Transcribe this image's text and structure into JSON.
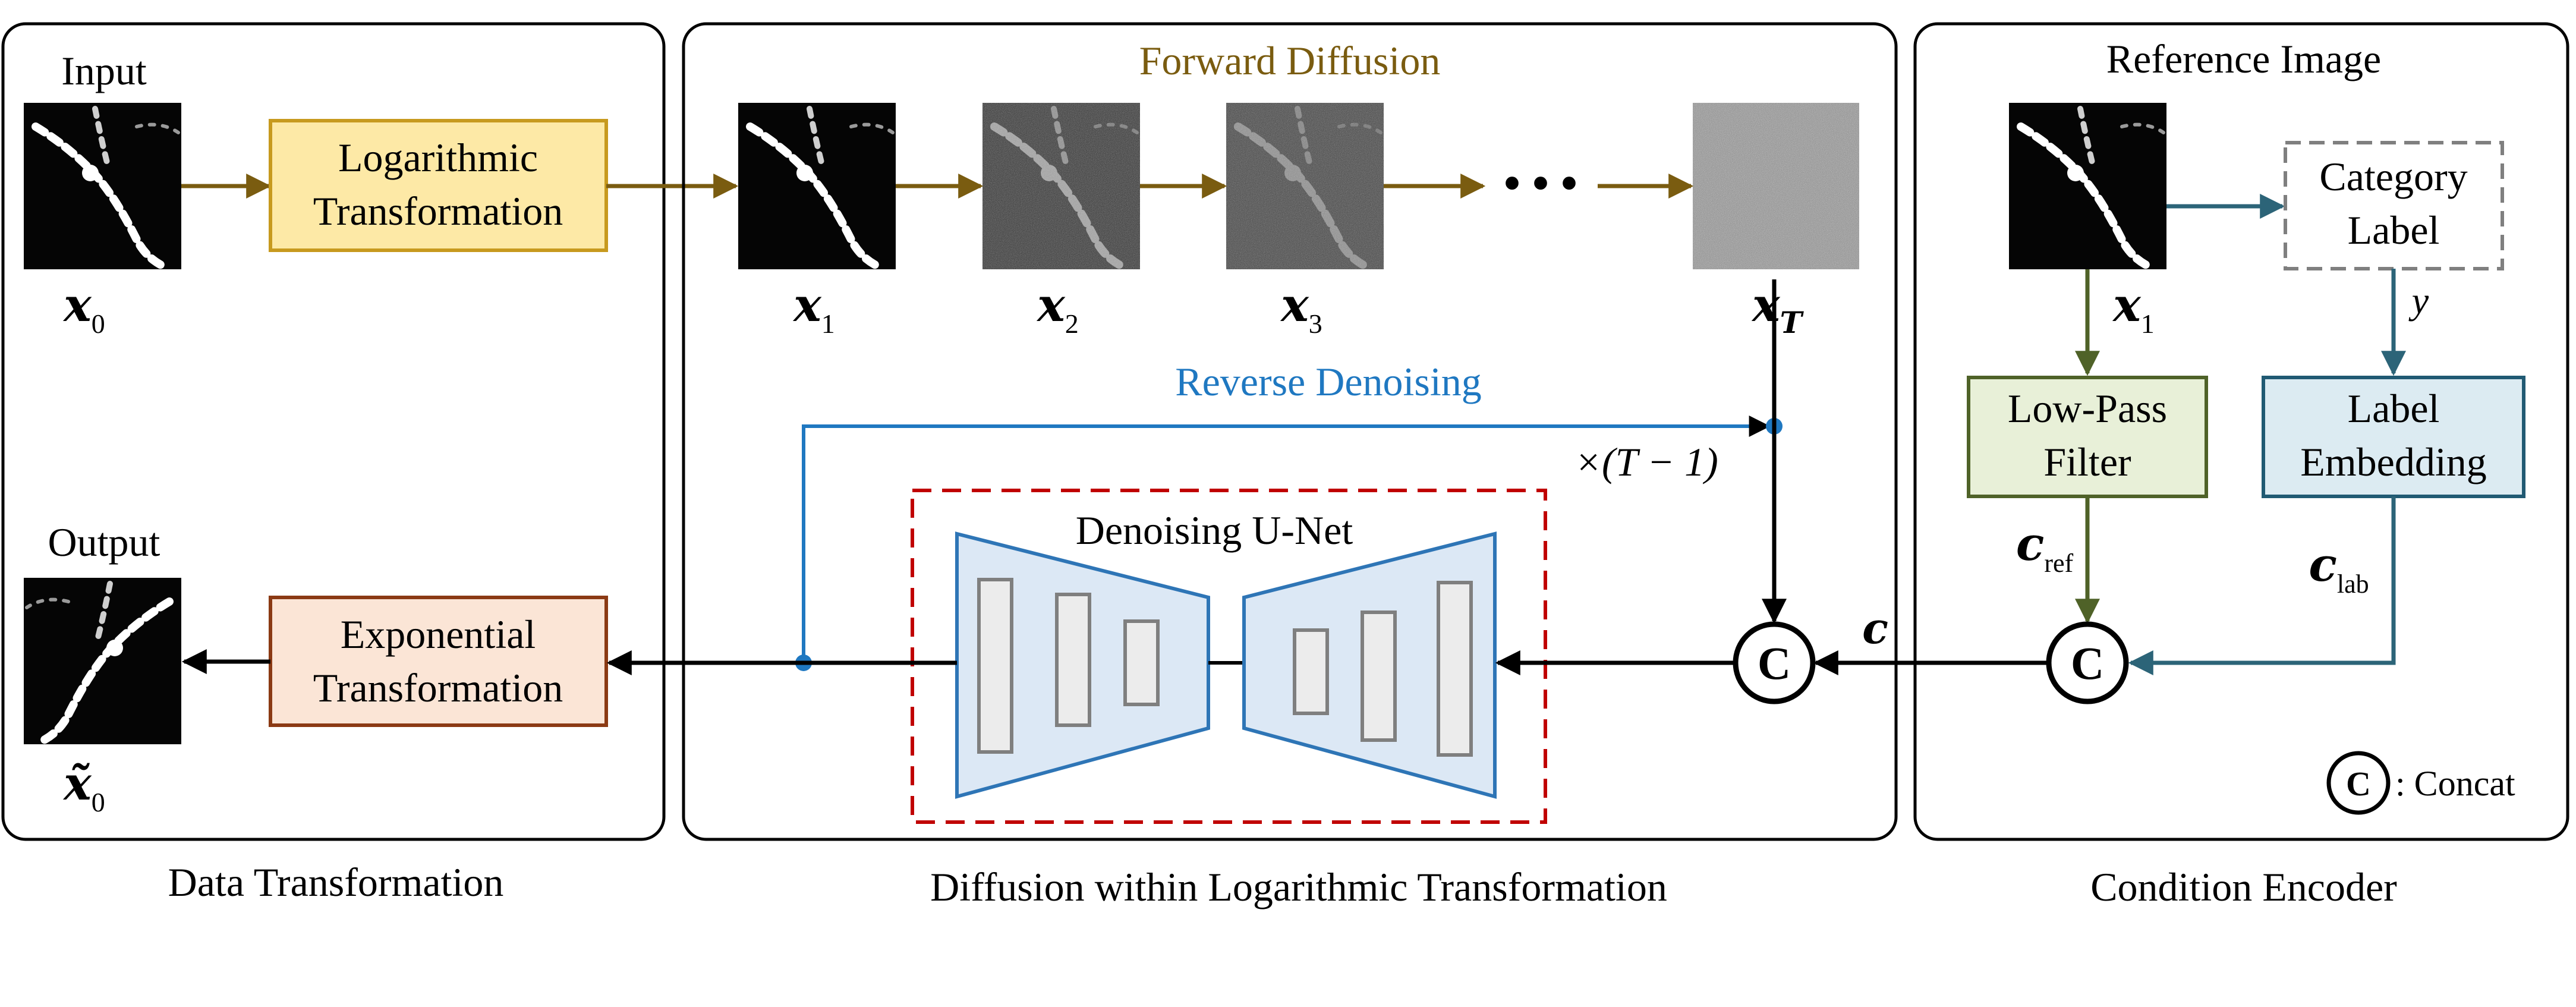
{
  "panels": {
    "data_transformation": {
      "caption": "Data Transformation",
      "input_label": "Input",
      "output_label": "Output",
      "input_var": "x",
      "input_sub": "0",
      "output_var": "x̃",
      "output_sub": "0",
      "log_box": [
        "Logarithmic",
        "Transformation"
      ],
      "exp_box": [
        "Exponential",
        "Transformation"
      ]
    },
    "diffusion": {
      "caption": "Diffusion within Logarithmic Transformation",
      "forward_title": "Forward Diffusion",
      "reverse_title": "Reverse Denoising",
      "states": [
        {
          "var": "x",
          "sub": "1"
        },
        {
          "var": "x",
          "sub": "2"
        },
        {
          "var": "x",
          "sub": "3"
        },
        {
          "var": "x",
          "sub": "T"
        }
      ],
      "ellipsis": "• • •",
      "repeat_label": "×(T − 1)",
      "unet_title": "Denoising U-Net",
      "concat_symbol": "C",
      "cond_var": "c"
    },
    "condition_encoder": {
      "caption": "Condition Encoder",
      "reference_title": "Reference Image",
      "ref_var": "x",
      "ref_sub": "1",
      "category_box": [
        "Category",
        "Label"
      ],
      "y_label": "y",
      "lowpass_box": [
        "Low-Pass",
        "Filter"
      ],
      "embedding_box": [
        "Label",
        "Embedding"
      ],
      "c_ref_var": "c",
      "c_ref_sub": "ref",
      "c_lab_var": "c",
      "c_lab_sub": "lab",
      "concat_symbol": "C",
      "legend_symbol": "C",
      "legend_text": ": Concat"
    }
  },
  "colors": {
    "forward_arrow": "#7a5c10",
    "reverse": "#1f78c1",
    "forward_title": "#7a5c10",
    "log_box_fill": "#fde9a6",
    "log_box_stroke": "#c79a1e",
    "exp_box_fill": "#fbe5d6",
    "exp_box_stroke": "#8b3a14",
    "unet_fill": "#dce8f5",
    "unet_stroke": "#2e75b6",
    "unet_dash": "#c00000",
    "lowpass_fill": "#e8f0d8",
    "lowpass_stroke": "#4f6228",
    "embedding_fill": "#dcebf2",
    "embedding_stroke": "#205a73",
    "category_stroke": "#7f7f7f",
    "teal_arrow": "#2c6478",
    "olive_arrow": "#4f6228",
    "panel_stroke": "#000000"
  },
  "icons": {
    "concat": "concat-circle-icon",
    "arrow": "arrow-icon"
  }
}
